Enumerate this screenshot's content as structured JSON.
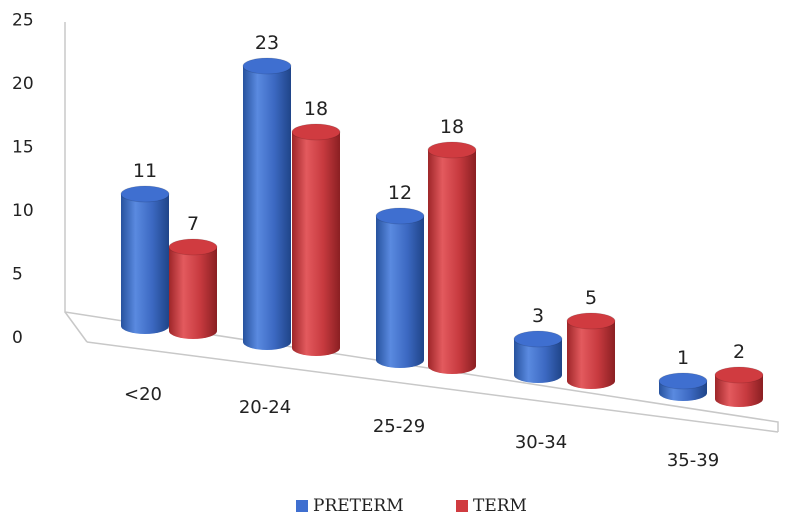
{
  "chart_data": {
    "type": "bar",
    "style": "3d-cylinder",
    "categories": [
      "<20",
      "20-24",
      "25-29",
      "30-34",
      "35-39"
    ],
    "series": [
      {
        "name": "PRETERM",
        "values": [
          11,
          23,
          12,
          3,
          1
        ],
        "color": "#3F6FD0"
      },
      {
        "name": "TERM",
        "values": [
          7,
          18,
          18,
          5,
          2
        ],
        "color": "#D03B40"
      }
    ],
    "ylim": [
      0,
      25
    ],
    "yticks": [
      0,
      5,
      10,
      15,
      20,
      25
    ],
    "legend_position": "bottom"
  }
}
